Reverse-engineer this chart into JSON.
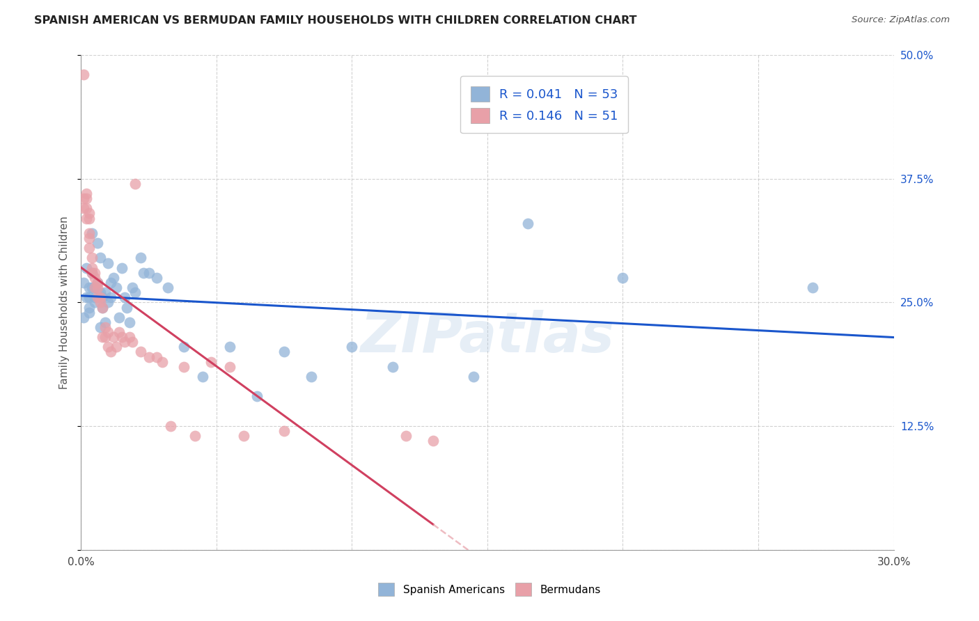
{
  "title": "SPANISH AMERICAN VS BERMUDAN FAMILY HOUSEHOLDS WITH CHILDREN CORRELATION CHART",
  "source": "Source: ZipAtlas.com",
  "ylabel": "Family Households with Children",
  "xlim": [
    0.0,
    0.3
  ],
  "ylim": [
    0.0,
    0.5
  ],
  "xticks": [
    0.0,
    0.05,
    0.1,
    0.15,
    0.2,
    0.25,
    0.3
  ],
  "yticks": [
    0.0,
    0.125,
    0.25,
    0.375,
    0.5
  ],
  "xticklabels_show": [
    "0.0%",
    "30.0%"
  ],
  "yticklabels_right": [
    "",
    "12.5%",
    "25.0%",
    "37.5%",
    "50.0%"
  ],
  "legend_r1": "0.041",
  "legend_n1": "53",
  "legend_r2": "0.146",
  "legend_n2": "51",
  "color_blue": "#92b4d8",
  "color_pink": "#e8a0a8",
  "line_color_blue": "#1a56cc",
  "line_color_pink": "#d04060",
  "watermark": "ZIPatlas",
  "sa_x": [
    0.001,
    0.001,
    0.002,
    0.002,
    0.003,
    0.003,
    0.003,
    0.003,
    0.004,
    0.004,
    0.004,
    0.005,
    0.005,
    0.005,
    0.006,
    0.006,
    0.007,
    0.007,
    0.007,
    0.008,
    0.008,
    0.009,
    0.009,
    0.01,
    0.01,
    0.011,
    0.011,
    0.012,
    0.013,
    0.014,
    0.015,
    0.016,
    0.017,
    0.018,
    0.019,
    0.02,
    0.022,
    0.023,
    0.025,
    0.028,
    0.032,
    0.038,
    0.045,
    0.055,
    0.065,
    0.075,
    0.085,
    0.1,
    0.115,
    0.145,
    0.165,
    0.2,
    0.27
  ],
  "sa_y": [
    0.27,
    0.235,
    0.285,
    0.255,
    0.265,
    0.255,
    0.245,
    0.24,
    0.32,
    0.28,
    0.265,
    0.265,
    0.255,
    0.25,
    0.31,
    0.27,
    0.295,
    0.26,
    0.225,
    0.255,
    0.245,
    0.23,
    0.26,
    0.29,
    0.25,
    0.27,
    0.255,
    0.275,
    0.265,
    0.235,
    0.285,
    0.255,
    0.245,
    0.23,
    0.265,
    0.26,
    0.295,
    0.28,
    0.28,
    0.275,
    0.265,
    0.205,
    0.175,
    0.205,
    0.155,
    0.2,
    0.175,
    0.205,
    0.185,
    0.175,
    0.33,
    0.275,
    0.265
  ],
  "bm_x": [
    0.001,
    0.001,
    0.001,
    0.002,
    0.002,
    0.002,
    0.002,
    0.003,
    0.003,
    0.003,
    0.003,
    0.003,
    0.004,
    0.004,
    0.004,
    0.005,
    0.005,
    0.005,
    0.006,
    0.006,
    0.006,
    0.007,
    0.007,
    0.008,
    0.008,
    0.009,
    0.009,
    0.01,
    0.01,
    0.011,
    0.012,
    0.013,
    0.014,
    0.015,
    0.016,
    0.018,
    0.019,
    0.02,
    0.022,
    0.025,
    0.028,
    0.03,
    0.033,
    0.038,
    0.042,
    0.048,
    0.055,
    0.06,
    0.075,
    0.12,
    0.13
  ],
  "bm_y": [
    0.48,
    0.355,
    0.345,
    0.36,
    0.355,
    0.345,
    0.335,
    0.34,
    0.335,
    0.32,
    0.315,
    0.305,
    0.295,
    0.285,
    0.28,
    0.28,
    0.275,
    0.265,
    0.27,
    0.265,
    0.255,
    0.255,
    0.25,
    0.245,
    0.215,
    0.225,
    0.215,
    0.22,
    0.205,
    0.2,
    0.215,
    0.205,
    0.22,
    0.215,
    0.21,
    0.215,
    0.21,
    0.37,
    0.2,
    0.195,
    0.195,
    0.19,
    0.125,
    0.185,
    0.115,
    0.19,
    0.185,
    0.115,
    0.12,
    0.115,
    0.11
  ]
}
